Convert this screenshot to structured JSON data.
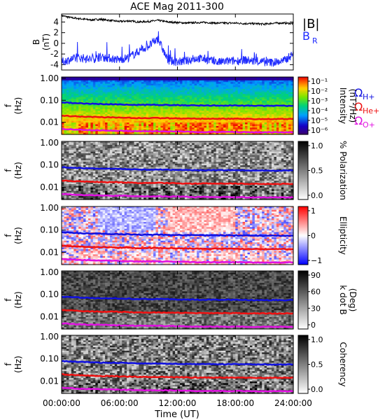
{
  "title": "ACE Mag 2011-300",
  "xlabel": "Time (UT)",
  "x_ticks": [
    "00:00:00",
    "06:00:00",
    "12:00:00",
    "18:00:00",
    "24:00:00"
  ],
  "colors": {
    "B_total": "#000000",
    "B_R": "#1f2bff",
    "H_plus": "#1010e0",
    "He_plus": "#ee1111",
    "O_plus": "#e010e0"
  },
  "legend": {
    "B_total": "|B|",
    "B_R": "B",
    "B_R_sub": "R",
    "omega": "Ω",
    "H_plus_sub": "H+",
    "He_plus_sub": "He+",
    "O_plus_sub": "O+"
  },
  "chart_data": [
    {
      "type": "line",
      "ylabel": "B",
      "ylabel_units": "(nT)",
      "y_ticks": [
        "4",
        "2",
        "0",
        "-2",
        "-4"
      ],
      "ylim": [
        -5,
        5.5
      ],
      "x_hours": [
        0,
        1,
        2,
        3,
        4,
        5,
        6,
        7,
        8,
        9,
        10,
        11,
        12,
        13,
        14,
        15,
        16,
        17,
        18,
        19,
        20,
        21,
        22,
        23,
        24
      ],
      "series": [
        {
          "name": "|B|",
          "values": [
            5.2,
            4.8,
            4.6,
            4.4,
            4.5,
            4.3,
            4.1,
            4.2,
            4.0,
            4.1,
            4.3,
            4.0,
            3.9,
            3.8,
            3.9,
            3.9,
            3.8,
            3.8,
            3.8,
            3.7,
            3.7,
            3.6,
            3.8,
            3.8,
            3.7
          ]
        },
        {
          "name": "B_R",
          "values": [
            -3.5,
            -3.0,
            -2.7,
            -3.0,
            -2.6,
            -2.8,
            -3.1,
            -2.6,
            -1.5,
            -0.5,
            0.8,
            -3.2,
            -3.5,
            -3.3,
            -2.8,
            -3.0,
            -3.6,
            -3.4,
            -3.3,
            -3.1,
            -3.4,
            -3.5,
            -3.6,
            -3.3,
            -2.0
          ]
        }
      ]
    },
    {
      "type": "heatmap",
      "ylabel": "f",
      "ylabel_units": "(Hz)",
      "y_ticks": [
        "1.00",
        "0.10",
        "0.01"
      ],
      "colorbar_label": "Intensity",
      "colorbar_units": "(nT²/Hz)",
      "colorbar_ticks": [
        "10⁻¹",
        "10⁻²",
        "10⁻³",
        "10⁻⁴",
        "10⁻⁵",
        "10⁻⁶"
      ]
    },
    {
      "type": "heatmap",
      "ylabel": "f",
      "ylabel_units": "(Hz)",
      "y_ticks": [
        "1.00",
        "0.10",
        "0.01"
      ],
      "colorbar_label": "% Polarization",
      "colorbar_units": "",
      "colorbar_ticks": [
        "1.0",
        "0.5",
        "0.0"
      ]
    },
    {
      "type": "heatmap",
      "ylabel": "f",
      "ylabel_units": "(Hz)",
      "y_ticks": [
        "1.00",
        "0.10",
        "0.01"
      ],
      "colorbar_label": "Ellipticity",
      "colorbar_units": "",
      "colorbar_ticks": [
        "1",
        "0",
        "−1"
      ]
    },
    {
      "type": "heatmap",
      "ylabel": "f",
      "ylabel_units": "(Hz)",
      "y_ticks": [
        "1.00",
        "0.10",
        "0.01"
      ],
      "colorbar_label": "k dot B",
      "colorbar_units": "(Deg)",
      "colorbar_ticks": [
        "90",
        "60",
        "30",
        "0"
      ]
    },
    {
      "type": "heatmap",
      "ylabel": "f",
      "ylabel_units": "(Hz)",
      "y_ticks": [
        "1.00",
        "0.10",
        "0.01"
      ],
      "colorbar_label": "Coherency",
      "colorbar_units": "",
      "colorbar_ticks": [
        "1.0",
        "0.5",
        "0.0"
      ]
    }
  ],
  "cyclotron_lines_hz": {
    "x_hours": [
      0,
      2,
      4,
      6,
      8,
      10,
      12,
      14,
      16,
      18,
      20,
      22,
      24
    ],
    "H_plus": [
      0.08,
      0.072,
      0.068,
      0.066,
      0.062,
      0.062,
      0.06,
      0.058,
      0.058,
      0.058,
      0.056,
      0.056,
      0.056
    ],
    "He_plus": [
      0.02,
      0.018,
      0.017,
      0.0165,
      0.0155,
      0.0155,
      0.015,
      0.0145,
      0.0145,
      0.0145,
      0.014,
      0.014,
      0.014
    ],
    "O_plus": [
      0.005,
      0.0045,
      0.0043,
      0.0041,
      0.0039,
      0.0039,
      0.0038,
      0.0036,
      0.0036,
      0.0036,
      0.0035,
      0.0035,
      0.0035
    ]
  }
}
